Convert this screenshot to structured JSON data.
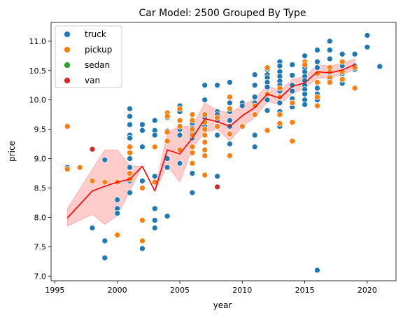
{
  "chart_data": {
    "type": "scatter",
    "title": "Car Model: 2500 Grouped By Type",
    "xlabel": "year",
    "ylabel": "price",
    "xlim": [
      1994.7,
      2022.3
    ],
    "ylim": [
      6.92,
      11.32
    ],
    "xticks": [
      1995,
      2000,
      2005,
      2010,
      2015,
      2020
    ],
    "yticks": [
      7.0,
      7.5,
      8.0,
      8.5,
      9.0,
      9.5,
      10.0,
      10.5,
      11.0
    ],
    "xtick_labels": [
      "1995",
      "2000",
      "2005",
      "2010",
      "2015",
      "2020"
    ],
    "ytick_labels": [
      "7.0",
      "7.5",
      "8.0",
      "8.5",
      "9.0",
      "9.5",
      "10.0",
      "10.5",
      "11.0"
    ],
    "grid": false,
    "legend_placement": "top-left",
    "series": [
      {
        "name": "truck",
        "color": "#1f77b4",
        "points": [
          [
            1996,
            8.85
          ],
          [
            1998,
            7.82
          ],
          [
            1999,
            8.98
          ],
          [
            1999,
            7.6
          ],
          [
            1999,
            7.31
          ],
          [
            2000,
            8.3
          ],
          [
            2000,
            8.15
          ],
          [
            2000,
            8.07
          ],
          [
            2001,
            9.85
          ],
          [
            2001,
            9.72
          ],
          [
            2001,
            9.58
          ],
          [
            2001,
            9.4
          ],
          [
            2001,
            9.35
          ],
          [
            2001,
            9.0
          ],
          [
            2001,
            8.85
          ],
          [
            2001,
            8.62
          ],
          [
            2001,
            8.42
          ],
          [
            2002,
            9.58
          ],
          [
            2002,
            9.48
          ],
          [
            2002,
            9.2
          ],
          [
            2002,
            8.62
          ],
          [
            2002,
            7.47
          ],
          [
            2003,
            9.65
          ],
          [
            2003,
            9.48
          ],
          [
            2003,
            9.4
          ],
          [
            2003,
            8.7
          ],
          [
            2003,
            8.15
          ],
          [
            2003,
            7.95
          ],
          [
            2003,
            7.82
          ],
          [
            2004,
            9.7
          ],
          [
            2004,
            9.47
          ],
          [
            2004,
            9.0
          ],
          [
            2004,
            8.85
          ],
          [
            2004,
            8.02
          ],
          [
            2005,
            9.9
          ],
          [
            2005,
            9.8
          ],
          [
            2005,
            9.5
          ],
          [
            2005,
            9.4
          ],
          [
            2005,
            9.15
          ],
          [
            2005,
            8.92
          ],
          [
            2006,
            9.6
          ],
          [
            2006,
            9.52
          ],
          [
            2006,
            9.45
          ],
          [
            2006,
            9.35
          ],
          [
            2006,
            8.75
          ],
          [
            2006,
            8.42
          ],
          [
            2007,
            10.25
          ],
          [
            2007,
            10.0
          ],
          [
            2007,
            9.7
          ],
          [
            2007,
            9.62
          ],
          [
            2007,
            9.55
          ],
          [
            2007,
            9.5
          ],
          [
            2008,
            10.25
          ],
          [
            2008,
            9.8
          ],
          [
            2008,
            9.75
          ],
          [
            2008,
            9.65
          ],
          [
            2008,
            9.4
          ],
          [
            2008,
            8.7
          ],
          [
            2009,
            10.3
          ],
          [
            2009,
            9.95
          ],
          [
            2009,
            9.8
          ],
          [
            2009,
            9.65
          ],
          [
            2009,
            9.55
          ],
          [
            2009,
            9.25
          ],
          [
            2010,
            9.95
          ],
          [
            2010,
            9.9
          ],
          [
            2011,
            10.43
          ],
          [
            2011,
            10.25
          ],
          [
            2011,
            10.05
          ],
          [
            2011,
            9.95
          ],
          [
            2011,
            9.75
          ],
          [
            2011,
            9.4
          ],
          [
            2011,
            9.2
          ],
          [
            2012,
            10.52
          ],
          [
            2012,
            10.43
          ],
          [
            2012,
            10.38
          ],
          [
            2012,
            10.3
          ],
          [
            2012,
            10.22
          ],
          [
            2012,
            10.1
          ],
          [
            2012,
            10.0
          ],
          [
            2012,
            9.82
          ],
          [
            2013,
            10.65
          ],
          [
            2013,
            10.58
          ],
          [
            2013,
            10.48
          ],
          [
            2013,
            10.4
          ],
          [
            2013,
            10.32
          ],
          [
            2013,
            10.25
          ],
          [
            2013,
            10.15
          ],
          [
            2013,
            10.05
          ],
          [
            2013,
            9.95
          ],
          [
            2013,
            9.8
          ],
          [
            2013,
            9.55
          ],
          [
            2014,
            10.6
          ],
          [
            2014,
            10.42
          ],
          [
            2014,
            10.25
          ],
          [
            2014,
            10.15
          ],
          [
            2014,
            10.02
          ],
          [
            2014,
            9.88
          ],
          [
            2015,
            10.75
          ],
          [
            2015,
            10.65
          ],
          [
            2015,
            10.55
          ],
          [
            2015,
            10.48
          ],
          [
            2015,
            10.4
          ],
          [
            2015,
            10.33
          ],
          [
            2015,
            10.25
          ],
          [
            2015,
            10.18
          ],
          [
            2015,
            10.1
          ],
          [
            2015,
            10.0
          ],
          [
            2015,
            9.92
          ],
          [
            2016,
            10.85
          ],
          [
            2016,
            10.65
          ],
          [
            2016,
            10.55
          ],
          [
            2016,
            10.45
          ],
          [
            2016,
            10.3
          ],
          [
            2016,
            10.2
          ],
          [
            2016,
            10.1
          ],
          [
            2016,
            10.0
          ],
          [
            2016,
            7.1
          ],
          [
            2017,
            11.0
          ],
          [
            2017,
            10.85
          ],
          [
            2017,
            10.7
          ],
          [
            2017,
            10.55
          ],
          [
            2017,
            10.45
          ],
          [
            2017,
            10.4
          ],
          [
            2017,
            10.35
          ],
          [
            2018,
            10.78
          ],
          [
            2018,
            10.58
          ],
          [
            2018,
            10.45
          ],
          [
            2018,
            10.28
          ],
          [
            2019,
            10.78
          ],
          [
            2019,
            10.58
          ],
          [
            2019,
            10.52
          ],
          [
            2020,
            11.1
          ],
          [
            2020,
            10.9
          ],
          [
            2021,
            10.57
          ]
        ]
      },
      {
        "name": "pickup",
        "color": "#ff7f0e",
        "points": [
          [
            1996,
            9.55
          ],
          [
            1996,
            8.82
          ],
          [
            1997,
            8.85
          ],
          [
            1998,
            8.62
          ],
          [
            1999,
            8.6
          ],
          [
            2000,
            8.6
          ],
          [
            2000,
            7.7
          ],
          [
            2001,
            9.2
          ],
          [
            2001,
            9.1
          ],
          [
            2001,
            8.75
          ],
          [
            2001,
            8.65
          ],
          [
            2002,
            8.5
          ],
          [
            2002,
            7.95
          ],
          [
            2002,
            7.6
          ],
          [
            2003,
            9.2
          ],
          [
            2003,
            8.6
          ],
          [
            2004,
            9.78
          ],
          [
            2004,
            9.72
          ],
          [
            2004,
            9.45
          ],
          [
            2004,
            9.3
          ],
          [
            2005,
            9.85
          ],
          [
            2005,
            9.65
          ],
          [
            2005,
            9.55
          ],
          [
            2005,
            9.15
          ],
          [
            2006,
            9.75
          ],
          [
            2006,
            9.65
          ],
          [
            2006,
            9.5
          ],
          [
            2006,
            9.4
          ],
          [
            2006,
            9.2
          ],
          [
            2006,
            9.1
          ],
          [
            2006,
            8.92
          ],
          [
            2007,
            9.75
          ],
          [
            2007,
            9.62
          ],
          [
            2007,
            9.5
          ],
          [
            2007,
            9.4
          ],
          [
            2007,
            9.28
          ],
          [
            2007,
            9.15
          ],
          [
            2007,
            9.05
          ],
          [
            2007,
            8.72
          ],
          [
            2008,
            9.7
          ],
          [
            2008,
            9.55
          ],
          [
            2009,
            10.05
          ],
          [
            2009,
            9.85
          ],
          [
            2009,
            9.42
          ],
          [
            2009,
            9.05
          ],
          [
            2010,
            9.55
          ],
          [
            2011,
            9.9
          ],
          [
            2011,
            9.75
          ],
          [
            2012,
            10.55
          ],
          [
            2012,
            10.1
          ],
          [
            2012,
            9.48
          ],
          [
            2013,
            10.2
          ],
          [
            2013,
            10.05
          ],
          [
            2013,
            9.75
          ],
          [
            2013,
            9.6
          ],
          [
            2014,
            9.95
          ],
          [
            2014,
            9.62
          ],
          [
            2014,
            9.3
          ],
          [
            2015,
            10.65
          ],
          [
            2015,
            10.6
          ],
          [
            2016,
            10.45
          ],
          [
            2016,
            10.3
          ],
          [
            2016,
            10.05
          ],
          [
            2016,
            9.9
          ],
          [
            2017,
            10.55
          ],
          [
            2017,
            10.48
          ],
          [
            2017,
            10.38
          ],
          [
            2017,
            10.3
          ],
          [
            2018,
            10.65
          ],
          [
            2018,
            10.48
          ],
          [
            2018,
            10.35
          ],
          [
            2019,
            10.55
          ],
          [
            2019,
            10.2
          ]
        ]
      },
      {
        "name": "sedan",
        "color": "#2ca02c",
        "points": []
      },
      {
        "name": "van",
        "color": "#d62728",
        "points": [
          [
            1998,
            9.16
          ],
          [
            2008,
            8.52
          ]
        ]
      }
    ],
    "trend_line": {
      "color": "#ff0000",
      "band_color": "#ff0000",
      "x": [
        1996,
        1998,
        1999,
        2000,
        2001,
        2002,
        2003,
        2004,
        2005,
        2006,
        2007,
        2008,
        2009,
        2010,
        2011,
        2012,
        2013,
        2014,
        2015,
        2016,
        2017,
        2018,
        2019
      ],
      "y": [
        7.99,
        8.45,
        8.53,
        8.6,
        8.65,
        8.87,
        8.45,
        9.15,
        9.08,
        9.35,
        9.68,
        9.63,
        9.55,
        9.73,
        9.87,
        10.1,
        10.03,
        10.23,
        10.29,
        10.48,
        10.46,
        10.51,
        10.6
      ],
      "lower": [
        7.85,
        8.05,
        7.88,
        8.03,
        8.45,
        8.87,
        8.45,
        8.88,
        8.6,
        9.18,
        9.45,
        9.5,
        9.3,
        9.55,
        9.7,
        9.97,
        9.92,
        10.11,
        10.2,
        10.37,
        10.38,
        10.43,
        10.52
      ],
      "upper": [
        8.15,
        8.82,
        9.15,
        9.15,
        8.88,
        8.87,
        8.45,
        9.45,
        9.55,
        9.55,
        9.95,
        9.82,
        9.78,
        9.9,
        10.02,
        10.25,
        10.15,
        10.35,
        10.4,
        10.6,
        10.58,
        10.62,
        10.7
      ]
    }
  }
}
